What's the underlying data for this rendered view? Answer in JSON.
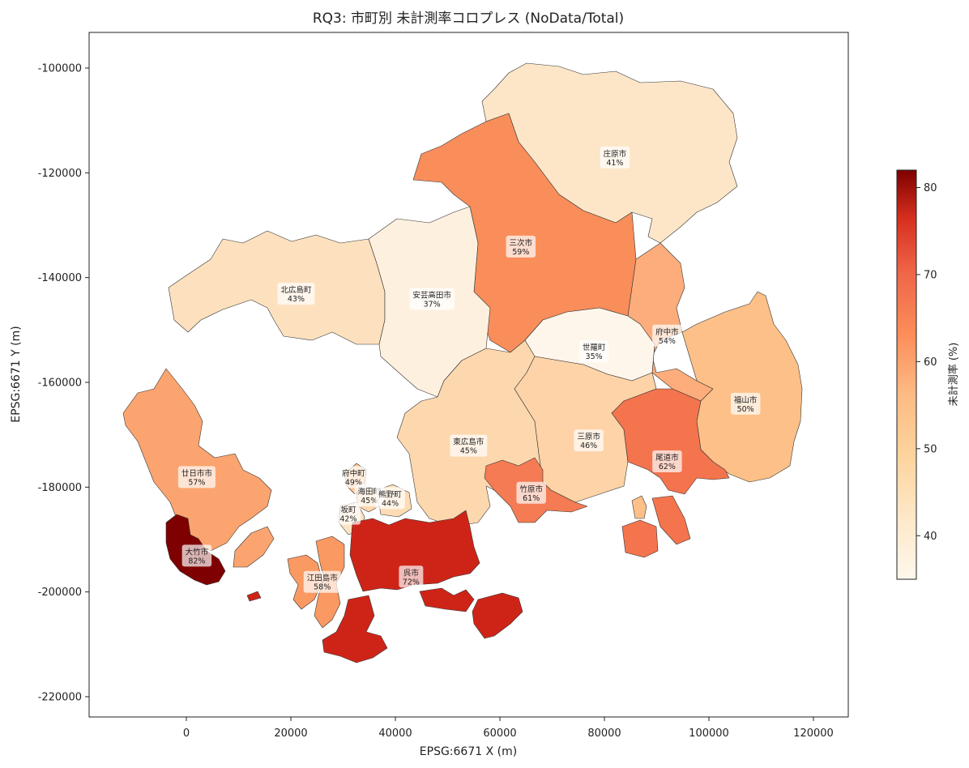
{
  "title": "RQ3: 市町別 未計測率コロプレス (NoData/Total)",
  "xlabel": "EPSG:6671 X (m)",
  "ylabel": "EPSG:6671 Y (m)",
  "colorbar_label": "未計測率 (%)",
  "x_ticks": [
    "0",
    "20000",
    "40000",
    "60000",
    "80000",
    "100000",
    "120000"
  ],
  "y_ticks": [
    "-100000",
    "-120000",
    "-140000",
    "-160000",
    "-180000",
    "-200000",
    "-220000"
  ],
  "colorbar_ticks": [
    "80",
    "70",
    "60",
    "50",
    "40"
  ],
  "colormap": "OrRd",
  "chart_data": {
    "type": "choropleth",
    "value_unit": "%",
    "value_range": [
      35,
      82
    ],
    "xlim": [
      -18000,
      127000
    ],
    "ylim": [
      -224000,
      -93000
    ],
    "municipalities": [
      {
        "name": "庄原市",
        "pct": "41%",
        "value": 41,
        "x": 82000,
        "y": -117000,
        "color": "#fde6c8"
      },
      {
        "name": "三次市",
        "pct": "59%",
        "value": 59,
        "x": 64000,
        "y": -134000,
        "color": "#f98e5b"
      },
      {
        "name": "北広島町",
        "pct": "43%",
        "value": 43,
        "x": 21000,
        "y": -143000,
        "color": "#fde1bf"
      },
      {
        "name": "安芸高田市",
        "pct": "37%",
        "value": 37,
        "x": 47000,
        "y": -144000,
        "color": "#fef0df"
      },
      {
        "name": "府中市",
        "pct": "54%",
        "value": 54,
        "x": 92000,
        "y": -151000,
        "color": "#fcad7b"
      },
      {
        "name": "世羅町",
        "pct": "35%",
        "value": 35,
        "x": 78000,
        "y": -154000,
        "color": "#fff6eb"
      },
      {
        "name": "福山市",
        "pct": "50%",
        "value": 50,
        "x": 107000,
        "y": -164000,
        "color": "#fcc088"
      },
      {
        "name": "東広島市",
        "pct": "45%",
        "value": 45,
        "x": 54000,
        "y": -172000,
        "color": "#fdd8ae"
      },
      {
        "name": "三原市",
        "pct": "46%",
        "value": 46,
        "x": 77000,
        "y": -171000,
        "color": "#fdd3a7"
      },
      {
        "name": "尾道市",
        "pct": "62%",
        "value": 62,
        "x": 92000,
        "y": -175000,
        "color": "#f4744d"
      },
      {
        "name": "廿日市市",
        "pct": "57%",
        "value": 57,
        "x": 2000,
        "y": -178000,
        "color": "#fba46f"
      },
      {
        "name": "府中町",
        "pct": "49%",
        "value": 49,
        "x": 32000,
        "y": -178000,
        "color": "#fdc594"
      },
      {
        "name": "海田町",
        "pct": "45%",
        "value": 45,
        "x": 35000,
        "y": -181500,
        "color": "#fdd8ae"
      },
      {
        "name": "熊野町",
        "pct": "44%",
        "value": 44,
        "x": 39000,
        "y": -182000,
        "color": "#fddcb5"
      },
      {
        "name": "竹原市",
        "pct": "61%",
        "value": 61,
        "x": 66000,
        "y": -181000,
        "color": "#f47b53"
      },
      {
        "name": "坂町",
        "pct": "42%",
        "value": 42,
        "x": 31000,
        "y": -185000,
        "color": "#fde3c2"
      },
      {
        "name": "大竹市",
        "pct": "82%",
        "value": 82,
        "x": 2000,
        "y": -193000,
        "color": "#7f0000"
      },
      {
        "name": "呉市",
        "pct": "72%",
        "value": 72,
        "x": 43000,
        "y": -197000,
        "color": "#ce2418"
      },
      {
        "name": "江田島市",
        "pct": "58%",
        "value": 58,
        "x": 26000,
        "y": -198000,
        "color": "#fa9962"
      }
    ]
  }
}
